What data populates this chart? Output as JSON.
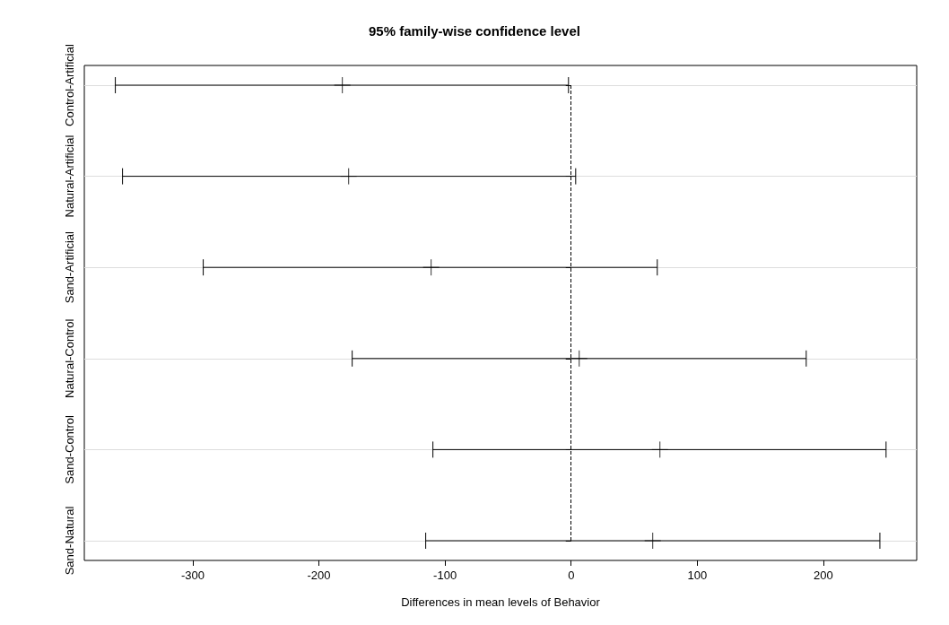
{
  "chart_data": {
    "type": "scatter",
    "orientation": "horizontal",
    "title": "95% family-wise confidence level",
    "xlabel": "Differences in mean levels of Behavior",
    "categories": [
      "Control-Artificial",
      "Natural-Artificial",
      "Sand-Artificial",
      "Natural-Control",
      "Sand-Control",
      "Sand-Natural"
    ],
    "series": [
      {
        "color": "#000000",
        "values": [
          -181.4,
          -176.4,
          -111.0,
          6.4,
          70.4,
          64.7
        ],
        "errors": [
          [
            -361.4,
            -2.1
          ],
          [
            -355.7,
            3.6
          ],
          [
            -291.7,
            68.3
          ],
          [
            -173.6,
            186.4
          ],
          [
            -109.6,
            249.7
          ],
          [
            -115.3,
            244.8
          ]
        ]
      }
    ],
    "xlim": [
      -386,
      274
    ],
    "xticks": [
      -300,
      -200,
      -100,
      0,
      100,
      200
    ],
    "ref_lines": [
      {
        "axis": "x",
        "value": 0,
        "color": "#000000",
        "line_style": "dashed"
      }
    ],
    "grid": "y",
    "legend": false,
    "marker": "cross"
  }
}
